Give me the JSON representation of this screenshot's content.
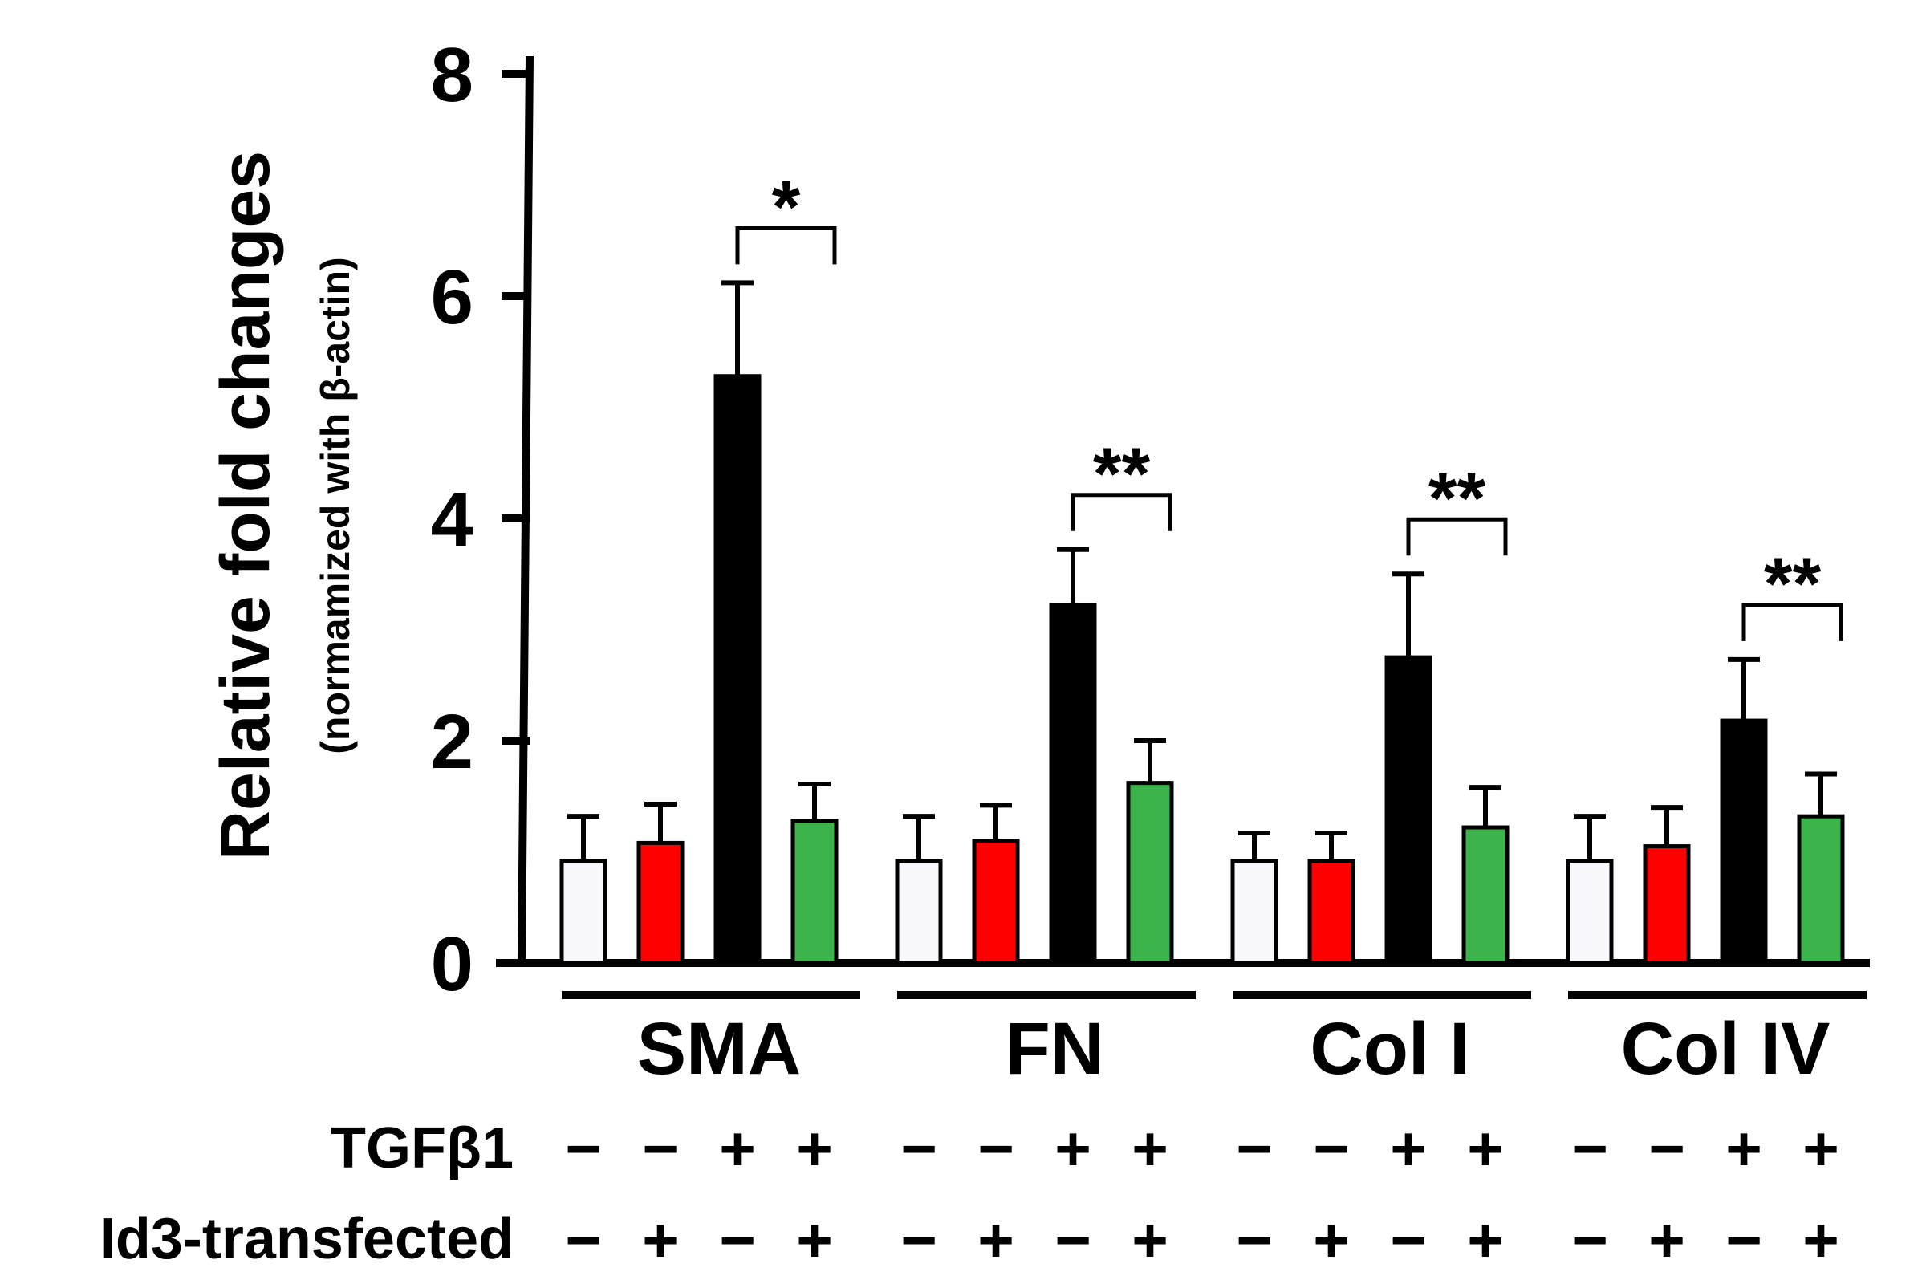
{
  "chart_data": {
    "type": "bar",
    "ylabel": "Relative fold changes",
    "ylabel_sub": "(normamized with β-actin)",
    "ylim": [
      0,
      8
    ],
    "yticks": [
      "0",
      "2",
      "4",
      "6",
      "8"
    ],
    "grid": false,
    "categories": [
      "SMA",
      "FN",
      "Col I",
      "Col IV"
    ],
    "series": [
      {
        "condition": "TGFβ1 − / Id3 −",
        "color": "#f8f8fc",
        "values": [
          0.92,
          0.92,
          0.92,
          0.92
        ],
        "errors": [
          0.4,
          0.4,
          0.25,
          0.4
        ]
      },
      {
        "condition": "TGFβ1 − / Id3 +",
        "color": "#ff0000",
        "values": [
          1.08,
          1.1,
          0.92,
          1.05
        ],
        "errors": [
          0.35,
          0.32,
          0.25,
          0.35
        ]
      },
      {
        "condition": "TGFβ1 + / Id3 −",
        "color": "#000000",
        "values": [
          5.28,
          3.22,
          2.75,
          2.18
        ],
        "errors": [
          0.84,
          0.5,
          0.75,
          0.55
        ]
      },
      {
        "condition": "TGFβ1 + / Id3 +",
        "color": "#3cb44b",
        "values": [
          1.28,
          1.62,
          1.22,
          1.32
        ],
        "errors": [
          0.33,
          0.38,
          0.36,
          0.38
        ]
      }
    ],
    "significance": [
      "*",
      "**",
      "**",
      "**"
    ],
    "conditions": {
      "tgf_label": "TGFβ1",
      "id3_label": "Id3-transfected",
      "tgf_signs": [
        "−",
        "−",
        "+",
        "+"
      ],
      "id3_signs": [
        "−",
        "+",
        "−",
        "+"
      ]
    }
  }
}
